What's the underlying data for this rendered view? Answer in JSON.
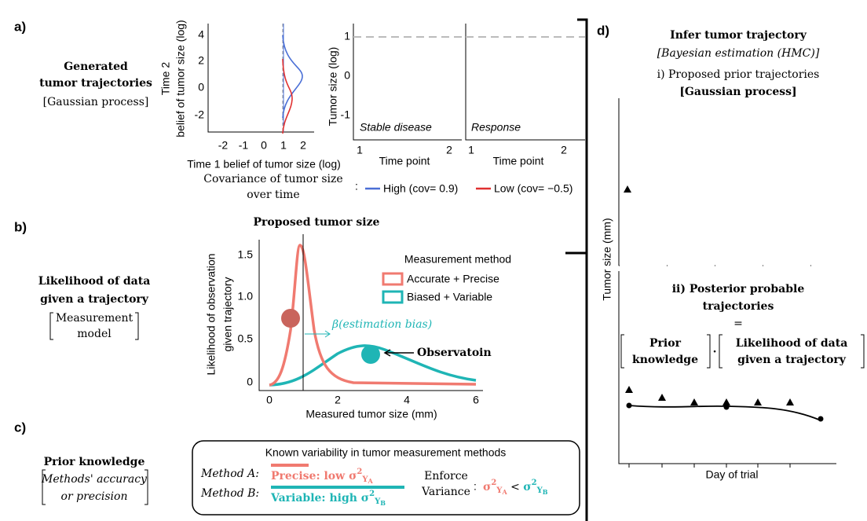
{
  "panel_a": {
    "label": "a)",
    "title_1": "Generated",
    "title_2": "tumor trajectories",
    "subtitle": "[Gaussian process]",
    "joint_plot": {
      "y_label_1": "Time 2",
      "y_label_2": "belief of tumor size (log)",
      "x_label": "Time 1 belief of tumor size (log)",
      "yticks": [
        "4",
        "2",
        "0",
        "-2"
      ],
      "xticks": [
        "-2",
        "-1",
        "0",
        "1",
        "2"
      ]
    },
    "time_plots": {
      "y_label": "Tumor size (log)",
      "yticks": [
        "1",
        "0",
        "-1"
      ],
      "x_label": "Time point",
      "xticks": [
        "1",
        "2"
      ],
      "panels": [
        "Stable disease",
        "Response"
      ]
    },
    "legend": {
      "title_1": "Covariance of tumor size",
      "title_2": "over time",
      "separator": ":",
      "items": [
        "High (cov= 0.9)",
        "Low (cov= −0.5)"
      ]
    }
  },
  "panel_b": {
    "label": "b)",
    "title_1": "Likelihood of data",
    "title_2": "given a trajectory",
    "model_1": "Measurement",
    "model_2": "model",
    "plot": {
      "top_label": "Proposed tumor size",
      "y_label_1": "Likelihood of observation",
      "y_label_2": "given trajectory",
      "x_label": "Measured tumor size (mm)",
      "yticks": [
        "0",
        "0.5",
        "1.0",
        "1.5"
      ],
      "xticks": [
        "0",
        "2",
        "4",
        "6"
      ],
      "bias": "β(estimation bias)",
      "observation": "Observatoin"
    },
    "legend": {
      "title": "Measurement method",
      "items": [
        "Accurate + Precise",
        "Biased + Variable"
      ]
    }
  },
  "panel_c": {
    "label": "c)",
    "title": "Prior  knowledge",
    "note_1": "Methods' accuracy",
    "note_2": "or precision",
    "box": {
      "title": "Known variability in tumor measurement methods",
      "method_a": {
        "name": "Method A:",
        "text": "Precise: low σ",
        "sup": "2",
        "sub": "Y",
        "subsub": "A"
      },
      "method_b": {
        "name": "Method B:",
        "text": "Variable: high σ",
        "sup": "2",
        "sub": "Y",
        "subsub": "B"
      },
      "enforce_1": "Enforce",
      "enforce_2": "Variance",
      "colon": ":",
      "rule": {
        "left": "σ",
        "left_sup": "2",
        "left_sub": "Y",
        "left_subsub": "A",
        "op": " < ",
        "right": "σ",
        "right_sup": "2",
        "right_sub": "Y",
        "right_subsub": "B"
      }
    }
  },
  "panel_d": {
    "label": "d)",
    "title": "Infer tumor trajectory",
    "subtitle": "[Bayesian estimation (HMC)]",
    "prior_1": "i) Proposed prior trajectories",
    "prior_2": "[Gaussian process]",
    "y_label": "Tumor size (mm)",
    "posterior_1": "ii) Posterior probable",
    "posterior_2": "trajectories",
    "equals": "=",
    "term_1a": "Prior",
    "term_1b": "knowledge",
    "dot": "·",
    "term_2a": "Likelihood of data",
    "term_2b": "given a trajectory",
    "x_label": "Day of trial"
  }
}
